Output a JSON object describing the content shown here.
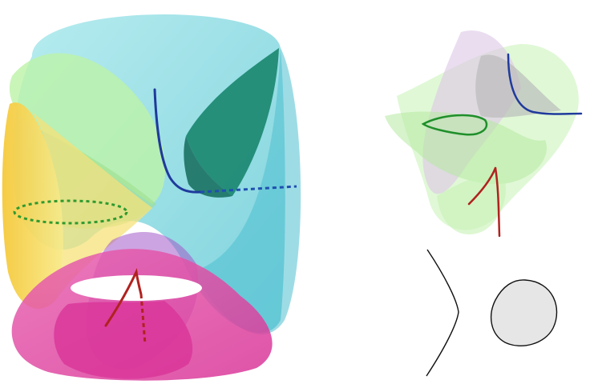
{
  "figure": {
    "background": "#ffffff",
    "panels": [
      {
        "id": "left-3d-surface",
        "sheets": [
          {
            "name": "cyan",
            "color": "#6fd3dc"
          },
          {
            "name": "green",
            "color": "#b8f0a8"
          },
          {
            "name": "dark-teal",
            "color": "#1f8a74"
          },
          {
            "name": "yellow",
            "color": "#f2d24a"
          },
          {
            "name": "magenta",
            "color": "#e0449f"
          },
          {
            "name": "purple",
            "color": "#b06ad0"
          }
        ],
        "curves": [
          {
            "name": "blue",
            "color": "#1f3a9c",
            "style": "solid+dashed"
          },
          {
            "name": "green",
            "color": "#2f9a2f",
            "style": "dotted"
          },
          {
            "name": "red",
            "color": "#b0221f",
            "style": "solid+dashed"
          }
        ]
      },
      {
        "id": "right-top-3d-surface",
        "sheets": [
          {
            "name": "lime",
            "color": "#c6f2b4"
          },
          {
            "name": "lavender",
            "color": "#dcc6e6"
          },
          {
            "name": "gray",
            "color": "#b9b9b9"
          }
        ],
        "curves": [
          {
            "name": "blue",
            "color": "#1f3a9c",
            "style": "solid"
          },
          {
            "name": "green",
            "color": "#1f8f2a",
            "style": "solid"
          },
          {
            "name": "red",
            "color": "#b0221f",
            "style": "solid"
          }
        ]
      },
      {
        "id": "right-bottom-2d-curve",
        "oval_fill": "#e6e6e6",
        "stroke": "#111111"
      }
    ]
  }
}
